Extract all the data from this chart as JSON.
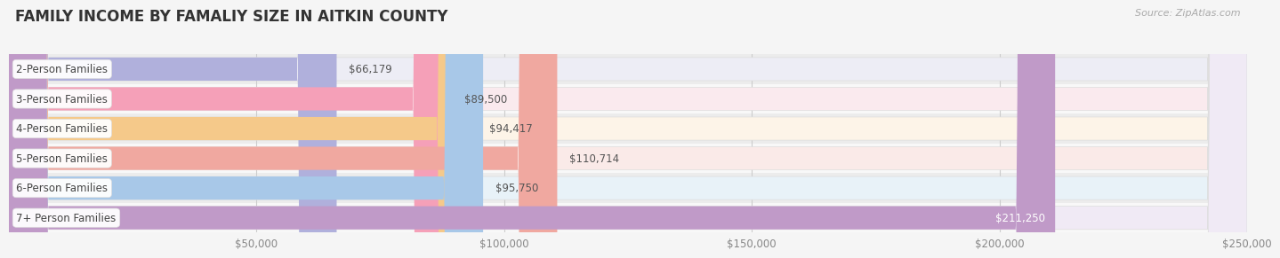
{
  "title": "FAMILY INCOME BY FAMALIY SIZE IN AITKIN COUNTY",
  "source": "Source: ZipAtlas.com",
  "categories": [
    "2-Person Families",
    "3-Person Families",
    "4-Person Families",
    "5-Person Families",
    "6-Person Families",
    "7+ Person Families"
  ],
  "values": [
    66179,
    89500,
    94417,
    110714,
    95750,
    211250
  ],
  "labels": [
    "$66,179",
    "$89,500",
    "$94,417",
    "$110,714",
    "$95,750",
    "$211,250"
  ],
  "label_inside": [
    false,
    false,
    false,
    false,
    false,
    true
  ],
  "bar_colors": [
    "#b0b0dc",
    "#f5a0b8",
    "#f5c98a",
    "#f0a8a0",
    "#a8c8e8",
    "#c09ac8"
  ],
  "bar_bg_colors": [
    "#ededf5",
    "#faeaee",
    "#fdf4e8",
    "#faeae8",
    "#e8f2f8",
    "#f0eaf5"
  ],
  "xlim": [
    0,
    250000
  ],
  "xticks": [
    50000,
    100000,
    150000,
    200000,
    250000
  ],
  "xticklabels": [
    "$50,000",
    "$100,000",
    "$150,000",
    "$200,000",
    "$250,000"
  ],
  "background_color": "#f5f5f5",
  "row_bg_colors": [
    "#efefef",
    "#f9f9f9",
    "#efefef",
    "#f9f9f9",
    "#efefef",
    "#f9f9f9"
  ],
  "title_fontsize": 12,
  "label_fontsize": 8.5,
  "category_fontsize": 8.5
}
